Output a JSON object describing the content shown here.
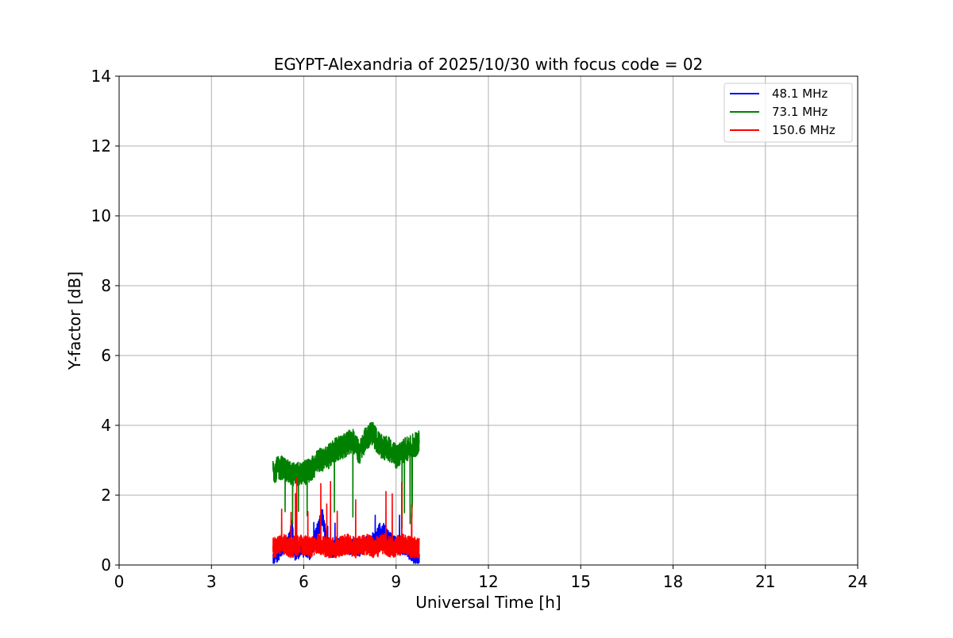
{
  "chart_data": {
    "type": "line",
    "title": "EGYPT-Alexandria of 2025/10/30 with focus code = 02",
    "xlabel": "Universal Time [h]",
    "ylabel": "Y-factor [dB]",
    "xlim": [
      0,
      24
    ],
    "ylim": [
      0,
      14
    ],
    "xticks": [
      "0",
      "3",
      "6",
      "9",
      "12",
      "15",
      "18",
      "21",
      "24"
    ],
    "yticks": [
      "0",
      "2",
      "4",
      "6",
      "8",
      "10",
      "12",
      "14"
    ],
    "grid": true,
    "legend_position": "top-right",
    "series": [
      {
        "name": "48.1 MHz",
        "color": "#0000ff",
        "x_range": [
          5.0,
          9.75
        ],
        "keypoints": [
          [
            5.0,
            0.2
          ],
          [
            5.3,
            0.5
          ],
          [
            5.55,
            0.7
          ],
          [
            5.62,
            1.2
          ],
          [
            5.7,
            0.3
          ],
          [
            5.9,
            0.5
          ],
          [
            6.2,
            0.4
          ],
          [
            6.5,
            1.1
          ],
          [
            6.6,
            1.4
          ],
          [
            6.8,
            0.4
          ],
          [
            7.3,
            0.6
          ],
          [
            7.8,
            0.5
          ],
          [
            8.3,
            0.7
          ],
          [
            8.5,
            1.0
          ],
          [
            8.9,
            0.6
          ],
          [
            9.3,
            0.5
          ],
          [
            9.7,
            0.2
          ]
        ]
      },
      {
        "name": "73.1 MHz",
        "color": "#008000",
        "x_range": [
          5.0,
          9.75
        ],
        "keypoints": [
          [
            5.0,
            2.7
          ],
          [
            5.3,
            2.8
          ],
          [
            5.6,
            2.6
          ],
          [
            5.9,
            2.6
          ],
          [
            6.2,
            2.7
          ],
          [
            6.5,
            3.0
          ],
          [
            6.8,
            3.1
          ],
          [
            7.0,
            3.3
          ],
          [
            7.3,
            3.4
          ],
          [
            7.6,
            3.6
          ],
          [
            7.8,
            3.2
          ],
          [
            8.0,
            3.6
          ],
          [
            8.2,
            3.8
          ],
          [
            8.5,
            3.4
          ],
          [
            8.8,
            3.3
          ],
          [
            9.0,
            3.1
          ],
          [
            9.3,
            3.3
          ],
          [
            9.5,
            3.4
          ],
          [
            9.75,
            3.5
          ]
        ]
      },
      {
        "name": "150.6 MHz",
        "color": "#ff0000",
        "x_range": [
          5.0,
          9.75
        ],
        "keypoints": [
          [
            5.0,
            0.5
          ],
          [
            5.3,
            0.6
          ],
          [
            5.6,
            0.5
          ],
          [
            5.9,
            0.6
          ],
          [
            6.2,
            0.5
          ],
          [
            6.5,
            0.6
          ],
          [
            6.8,
            0.5
          ],
          [
            7.1,
            0.5
          ],
          [
            7.4,
            0.6
          ],
          [
            7.7,
            0.5
          ],
          [
            8.0,
            0.6
          ],
          [
            8.3,
            0.5
          ],
          [
            8.6,
            0.6
          ],
          [
            8.9,
            0.5
          ],
          [
            9.2,
            0.6
          ],
          [
            9.5,
            0.5
          ],
          [
            9.75,
            0.5
          ]
        ]
      }
    ]
  }
}
